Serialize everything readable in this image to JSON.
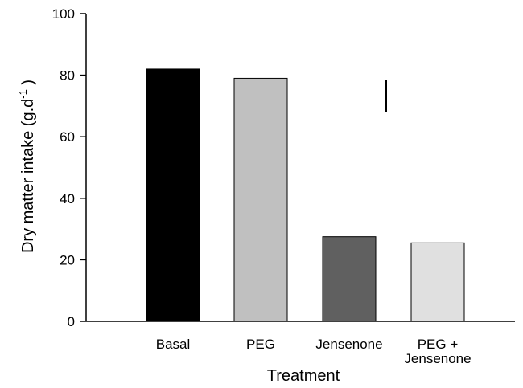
{
  "chart_data": {
    "type": "bar",
    "categories": [
      [
        "Basal"
      ],
      [
        "PEG"
      ],
      [
        "Jensenone"
      ],
      [
        "PEG +",
        "Jensenone"
      ]
    ],
    "values": [
      82,
      79,
      27.5,
      25.5
    ],
    "bar_colors": [
      "#000000",
      "#c0c0c0",
      "#606060",
      "#e0e0e0"
    ],
    "title": "",
    "xlabel": "Treatment",
    "ylabel": "Dry matter intake (g.d",
    "ylabel_superscript": "-1",
    "ylabel_suffix": " )",
    "ylim": [
      0,
      100
    ],
    "yticks": [
      0,
      20,
      40,
      60,
      80,
      100
    ],
    "error_bar": {
      "low": 68,
      "high": 78.5
    },
    "grid": false,
    "legend": "none"
  }
}
